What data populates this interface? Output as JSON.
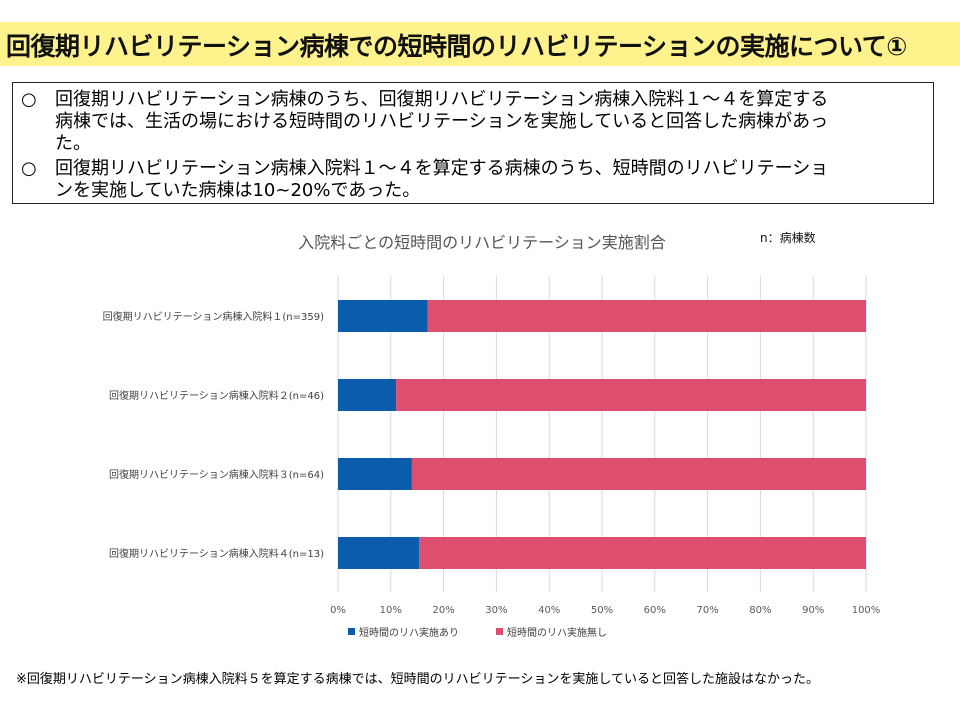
{
  "header": {
    "title": "回復期リハビリテーション病棟での短時間のリハビリテーションの実施について①"
  },
  "summary": {
    "bullets": [
      {
        "mark": "○",
        "lines": [
          "回復期リハビリテーション病棟のうち、回復期リハビリテーション病棟入院料１～４を算定する",
          "病棟では、生活の場における短時間のリハビリテーションを実施していると回答した病棟があっ",
          "た。"
        ]
      },
      {
        "mark": "○",
        "lines": [
          "回復期リハビリテーション病棟入院料１～４を算定する病棟のうち、短時間のリハビリテーショ",
          "ンを実施していた病棟は10~20%であった。"
        ]
      }
    ]
  },
  "chart_data": {
    "type": "bar",
    "orientation": "horizontal",
    "stacked": "percent",
    "title": "入院料ごとの短時間のリハビリテーション実施割合",
    "note": "n：病棟数",
    "categories": [
      "回復期リハビリテーション病棟入院料１(n=359)",
      "回復期リハビリテーション病棟入院料２(n=46)",
      "回復期リハビリテーション病棟入院料３(n=64)",
      "回復期リハビリテーション病棟入院料４(n=13)"
    ],
    "series": [
      {
        "name": "短時間のリハ実施あり",
        "color": "#0b5cad",
        "values": [
          17,
          11,
          14,
          15.4
        ]
      },
      {
        "name": "短時間のリハ実施無し",
        "color": "#de4e6e",
        "values": [
          83,
          89,
          86,
          84.6
        ]
      }
    ],
    "xlim": [
      0,
      100
    ],
    "xticks": [
      "0%",
      "10%",
      "20%",
      "30%",
      "40%",
      "50%",
      "60%",
      "70%",
      "80%",
      "90%",
      "100%"
    ],
    "grid": true,
    "legend": "bottom"
  },
  "footnote": "※回復期リハビリテーション病棟入院料５を算定する病棟では、短時間のリハビリテーションを実施していると回答した施設はなかった。"
}
